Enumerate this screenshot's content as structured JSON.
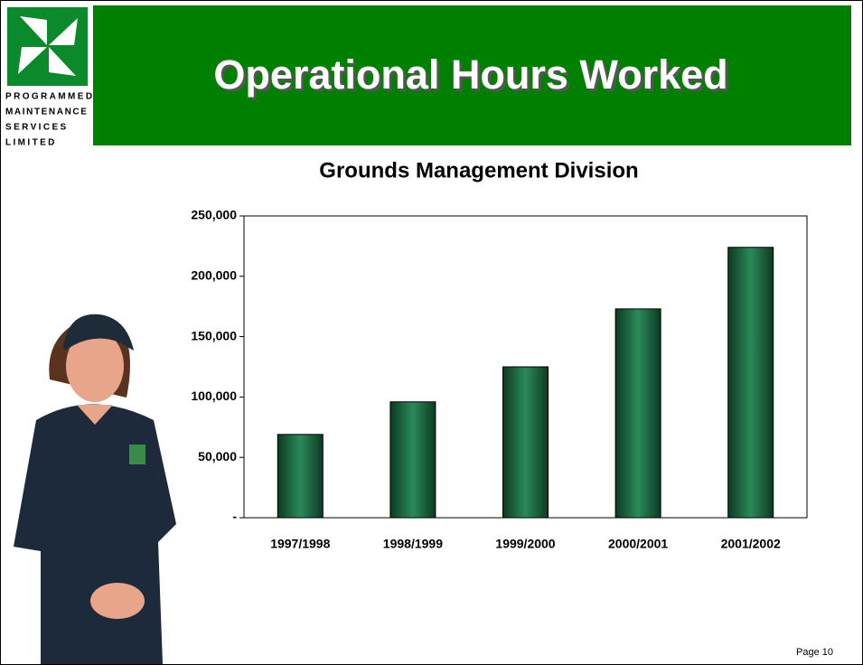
{
  "header": {
    "title": "Operational Hours Worked"
  },
  "logo": {
    "lines": [
      "PROGRAMMED",
      "MAINTENANCE",
      "SERVICES",
      "LIMITED"
    ]
  },
  "footer": {
    "page": "Page 10"
  },
  "chart_data": {
    "type": "bar",
    "title": "Grounds Management Division",
    "categories": [
      "1997/1998",
      "1998/1999",
      "1999/2000",
      "2000/2001",
      "2001/2002"
    ],
    "values": [
      69000,
      96000,
      125000,
      173000,
      224000
    ],
    "color": "#2a8a5a",
    "ylim": [
      0,
      250000
    ],
    "yticks": [
      {
        "value": 0,
        "label": "-"
      },
      {
        "value": 50000,
        "label": "50,000"
      },
      {
        "value": 100000,
        "label": "100,000"
      },
      {
        "value": 150000,
        "label": "150,000"
      },
      {
        "value": 200000,
        "label": "200,000"
      },
      {
        "value": 250000,
        "label": "250,000"
      }
    ],
    "grid": false
  }
}
